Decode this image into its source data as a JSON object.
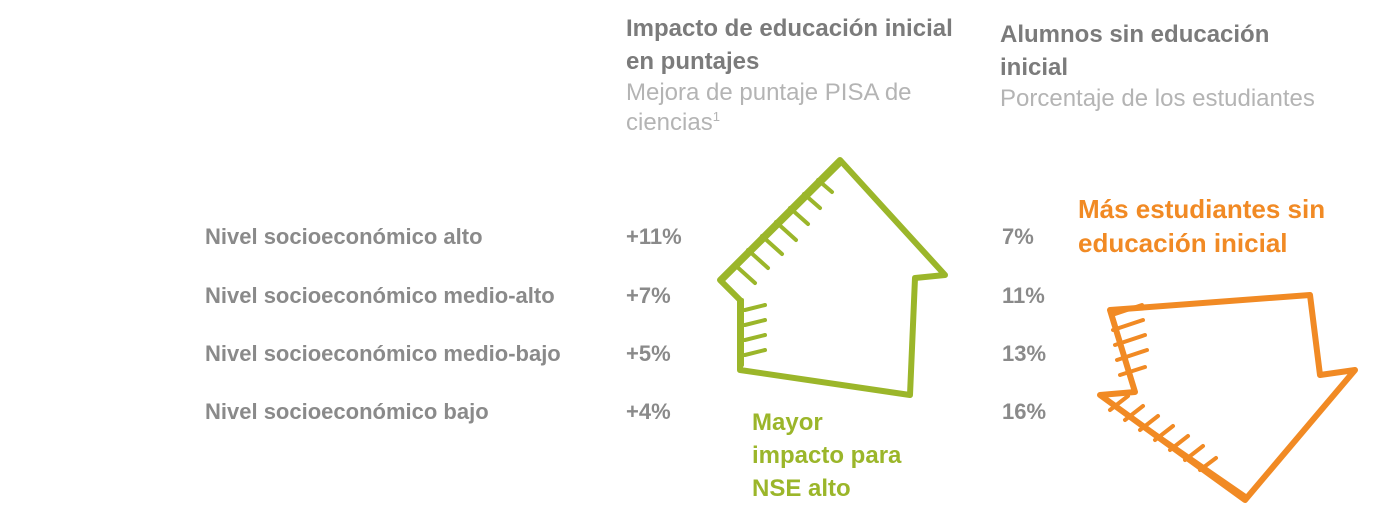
{
  "columns": [
    {
      "title": "Impacto de educación inicial en puntajes",
      "subtitle": "Mejora de puntaje PISA de ciencias",
      "footnote": "1"
    },
    {
      "title": "Alumnos sin educación inicial",
      "subtitle": "Porcentaje de los estudiantes"
    }
  ],
  "rows": [
    {
      "label": "Nivel socioeconómico alto",
      "impact": "+11%",
      "without": "7%"
    },
    {
      "label": "Nivel socioeconómico medio-alto",
      "impact": "+7%",
      "without": "11%"
    },
    {
      "label": "Nivel socioeconómico medio-bajo",
      "impact": "+5%",
      "without": "13%"
    },
    {
      "label": "Nivel socioeconómico bajo",
      "impact": "+4%",
      "without": "16%"
    }
  ],
  "annotations": [
    {
      "text": "Mayor impacto para NSE alto"
    },
    {
      "text": "Más estudiantes sin educación inicial"
    }
  ]
}
